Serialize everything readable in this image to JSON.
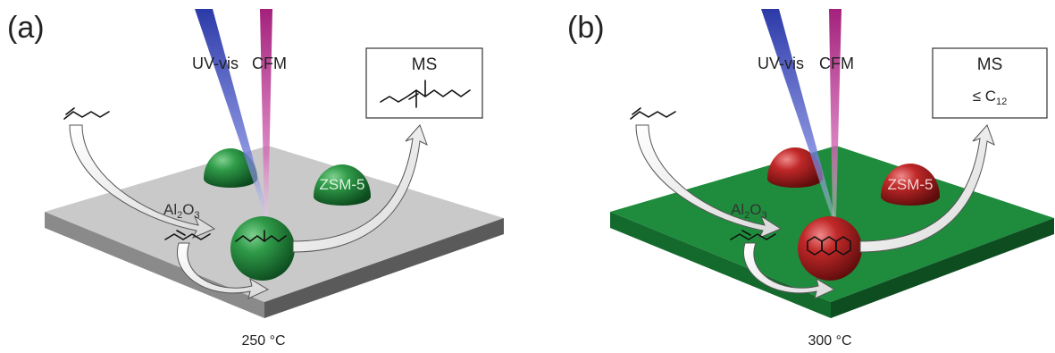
{
  "panels": [
    {
      "letter": "(a)",
      "uv_label": "UV-vis",
      "cfm_label": "CFM",
      "ms_title": "MS",
      "ms_subtext": "",
      "al2o3_main": "Al",
      "al2o3_sub": "2",
      "al2o3_o": "O",
      "al2o3_sub2": "3",
      "zsm_label": "ZSM-5",
      "temperature": "250 °C"
    },
    {
      "letter": "(b)",
      "uv_label": "UV-vis",
      "cfm_label": "CFM",
      "ms_title": "MS",
      "ms_subtext": "≤ C",
      "ms_subscript": "12",
      "al2o3_main": "Al",
      "al2o3_sub": "2",
      "al2o3_o": "O",
      "al2o3_sub2": "3",
      "zsm_label": "ZSM-5",
      "temperature": "300 °C"
    }
  ],
  "colors": {
    "plate_a_top": "#c8c8c8",
    "plate_a_side": "#6e6e6e",
    "plate_b_top": "#1e8c3c",
    "plate_b_side": "#0f5a25",
    "sphere_green": "#1d7a35",
    "sphere_red": "#b01e1e",
    "uv_beam": "#3a46b8",
    "cfm_beam": "#b02a8a"
  }
}
